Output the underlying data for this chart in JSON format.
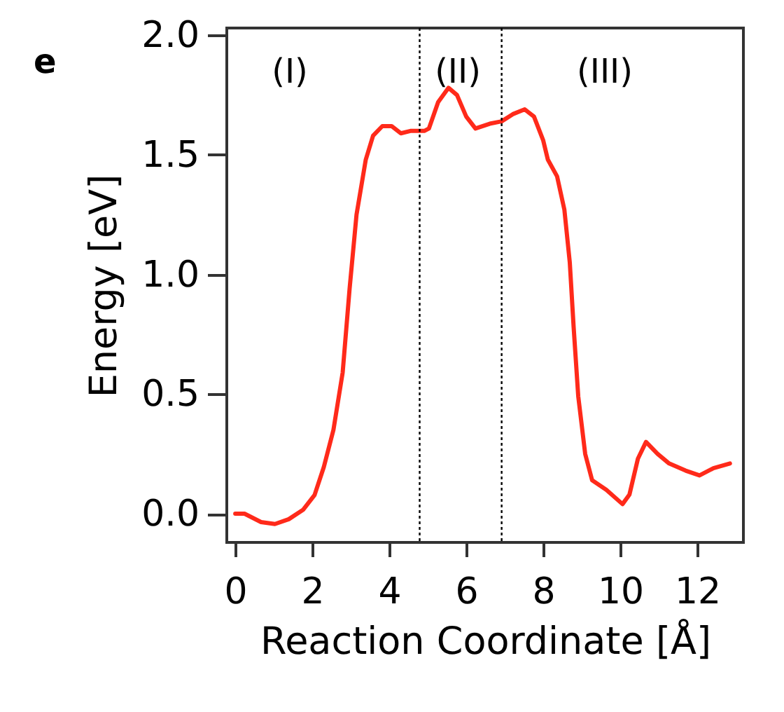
{
  "chart_data": {
    "type": "line",
    "title": "e",
    "xlabel": "Reaction Coordinate [Å]",
    "ylabel": "Energy [eV]",
    "x": [
      0,
      0.24,
      0.67,
      1.03,
      1.39,
      1.76,
      2.06,
      2.3,
      2.55,
      2.79,
      2.97,
      3.15,
      3.39,
      3.58,
      3.82,
      4.06,
      4.3,
      4.55,
      4.91,
      5.03,
      5.27,
      5.54,
      5.76,
      6.0,
      6.24,
      6.61,
      6.92,
      7.21,
      7.52,
      7.76,
      8.0,
      8.12,
      8.36,
      8.55,
      8.69,
      8.79,
      8.91,
      9.09,
      9.27,
      9.64,
      10.06,
      10.24,
      10.46,
      10.67,
      10.97,
      11.27,
      11.7,
      12.06,
      12.42,
      12.85
    ],
    "series": [
      {
        "color": "#ff2a1a",
        "values": [
          0,
          0,
          -0.035,
          -0.043,
          -0.023,
          0.016,
          0.078,
          0.195,
          0.35,
          0.59,
          0.94,
          1.25,
          1.48,
          1.58,
          1.62,
          1.62,
          1.59,
          1.6,
          1.6,
          1.61,
          1.72,
          1.78,
          1.75,
          1.66,
          1.61,
          1.63,
          1.64,
          1.67,
          1.69,
          1.66,
          1.56,
          1.48,
          1.41,
          1.27,
          1.05,
          0.78,
          0.49,
          0.25,
          0.14,
          0.1,
          0.04,
          0.08,
          0.23,
          0.3,
          0.25,
          0.21,
          0.18,
          0.16,
          0.19,
          0.21
        ]
      }
    ],
    "xlim": [
      -0.22,
      13.2
    ],
    "ylim": [
      -0.12,
      2.03
    ],
    "xticks": [
      0,
      2,
      4,
      6,
      8,
      10,
      12
    ],
    "yticks": [
      {
        "value": 0,
        "label": "0.0"
      },
      {
        "value": 0.5,
        "label": "0.5"
      },
      {
        "value": 1,
        "label": "1.0"
      },
      {
        "value": 1.5,
        "label": "1.5"
      },
      {
        "value": 2,
        "label": "2.0"
      }
    ],
    "ref_lines": [
      {
        "axis": "x",
        "value": 4.79,
        "line_style": "dotted",
        "color": "#000000"
      },
      {
        "axis": "x",
        "value": 6.92,
        "line_style": "dotted",
        "color": "#000000"
      }
    ],
    "annotations": [
      "(I)",
      "(II)",
      "(III)"
    ],
    "grid": false,
    "line_style": "solid",
    "marker": "none"
  }
}
